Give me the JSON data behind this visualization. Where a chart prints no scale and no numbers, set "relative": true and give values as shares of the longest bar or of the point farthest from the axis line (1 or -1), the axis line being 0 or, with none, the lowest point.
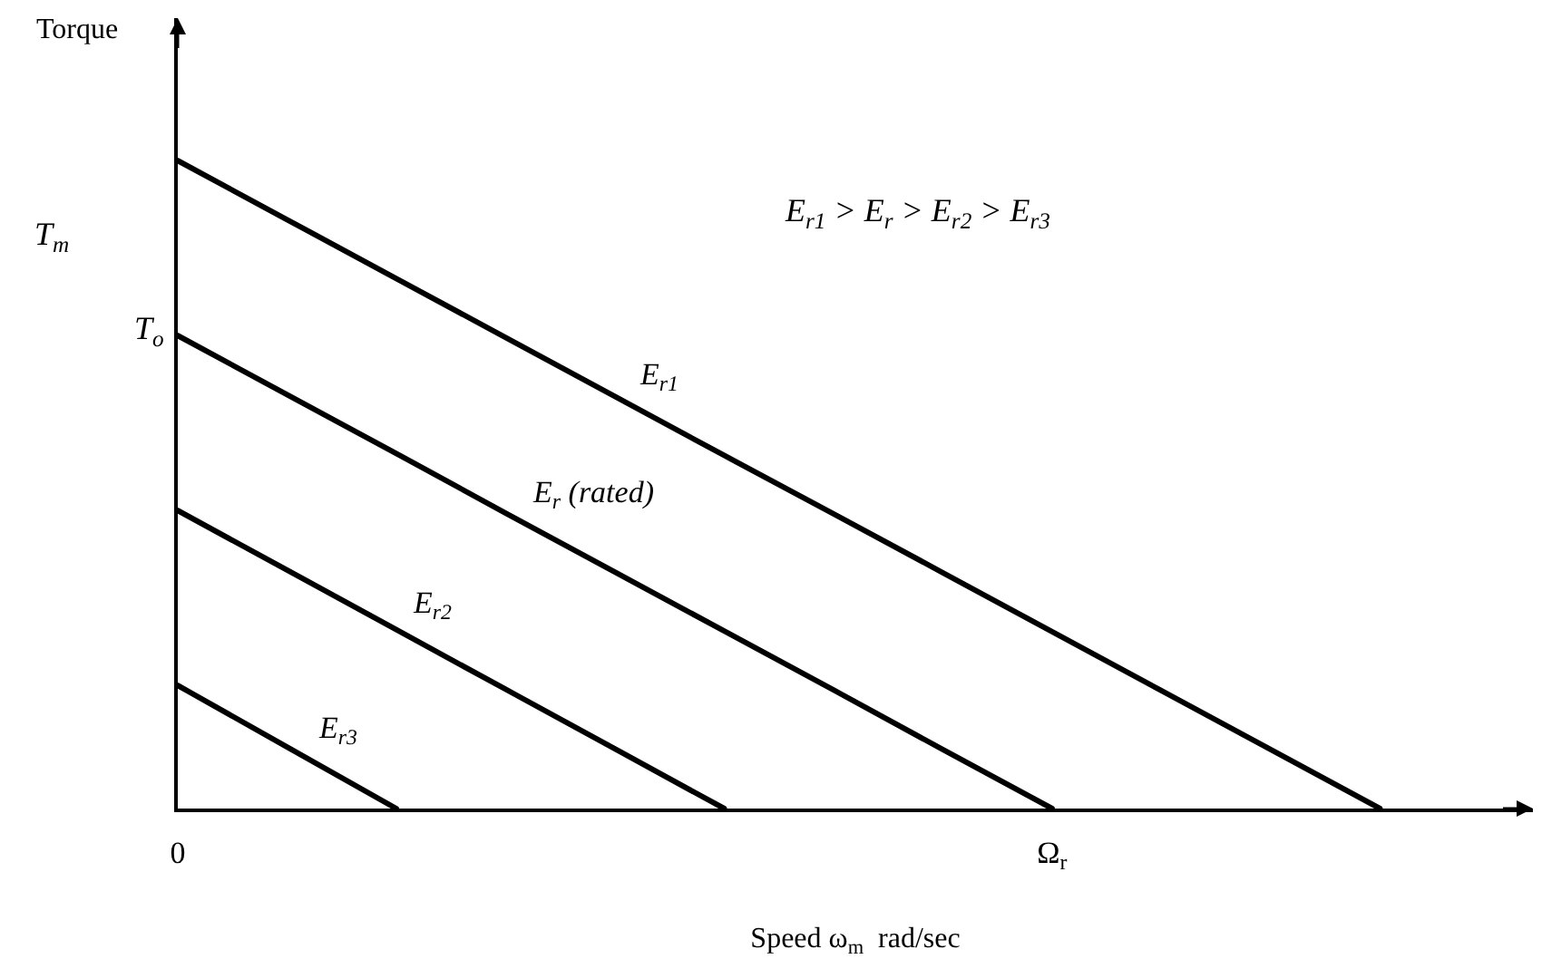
{
  "chart_data": {
    "type": "line",
    "relative": true,
    "ylabel": "Torque",
    "xlabel": "Speed ω$_{m}$  rad/sec",
    "categories": [
      "0",
      null,
      null,
      null,
      null,
      null,
      null,
      null,
      "Ω$_{r}$",
      null,
      null,
      null,
      null
    ],
    "series": [
      {
        "name": "E$_{r1}$",
        "color": "#000000",
        "values": [
          1,
          0.909,
          0.818,
          0.727,
          0.636,
          0.545,
          0.455,
          0.364,
          0.273,
          0.182,
          0.091,
          0,
          null
        ]
      },
      {
        "name": "E$_{r}$ (rated)",
        "color": "#000000",
        "values": [
          0.73,
          0.639,
          0.548,
          0.456,
          0.365,
          0.274,
          0.183,
          0.091,
          0,
          null,
          null,
          null,
          null
        ]
      },
      {
        "name": "E$_{r2}$",
        "color": "#000000",
        "values": [
          0.46,
          0.368,
          0.276,
          0.184,
          0.092,
          0,
          null,
          null,
          null,
          null,
          null,
          null,
          null
        ]
      },
      {
        "name": "E$_{r3}$",
        "color": "#000000",
        "values": [
          0.19,
          0.095,
          0,
          null,
          null,
          null,
          null,
          null,
          null,
          null,
          null,
          null,
          null
        ]
      }
    ],
    "annotations": [
      "E$_{r1}$ > E$_{r}$ > E$_{r2}$ > E$_{r3}$",
      "T$_{m}$",
      {
        "text": "T$_{o}$",
        "x": "0",
        "y": 0.73
      }
    ],
    "legend": false,
    "marker": "none",
    "line_style": "solid"
  }
}
